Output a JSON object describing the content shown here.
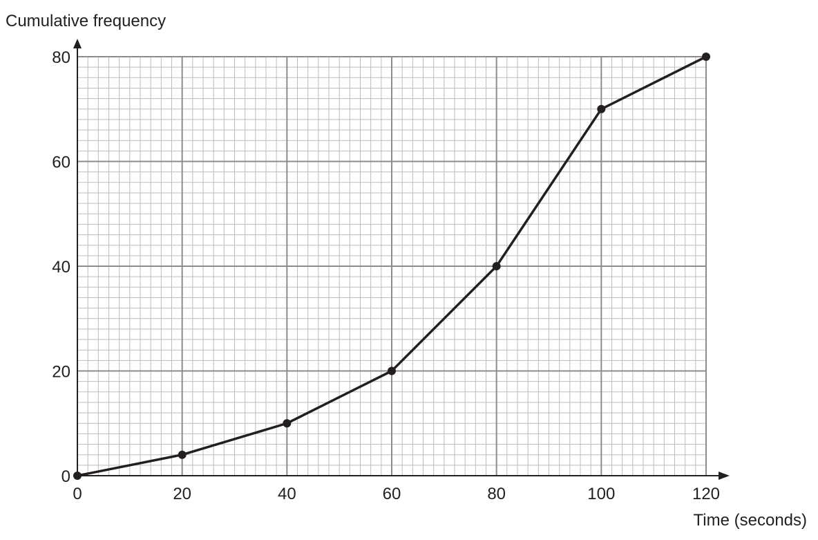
{
  "chart_data": {
    "type": "line",
    "title": "",
    "xlabel": "Time (seconds)",
    "ylabel": "Cumulative frequency",
    "xlim": [
      0,
      120
    ],
    "ylim": [
      0,
      80
    ],
    "x_ticks": [
      0,
      20,
      40,
      60,
      80,
      100,
      120
    ],
    "y_ticks": [
      0,
      20,
      40,
      60,
      80
    ],
    "x_tick_labels": [
      "0",
      "20",
      "40",
      "60",
      "80",
      "100",
      "120"
    ],
    "y_tick_labels": [
      "0",
      "20",
      "40",
      "60",
      "80"
    ],
    "minor_step_x": 2,
    "minor_step_y": 2,
    "grid": true,
    "series": [
      {
        "x": [
          0,
          20,
          40,
          60,
          80,
          100,
          120
        ],
        "y": [
          0,
          4,
          10,
          20,
          40,
          70,
          80
        ]
      }
    ],
    "colors": {
      "line": "#231f20",
      "marker": "#231f20",
      "major_grid": "#8c8c8c",
      "minor_grid": "#bdbdbd",
      "axis": "#231f20"
    }
  }
}
